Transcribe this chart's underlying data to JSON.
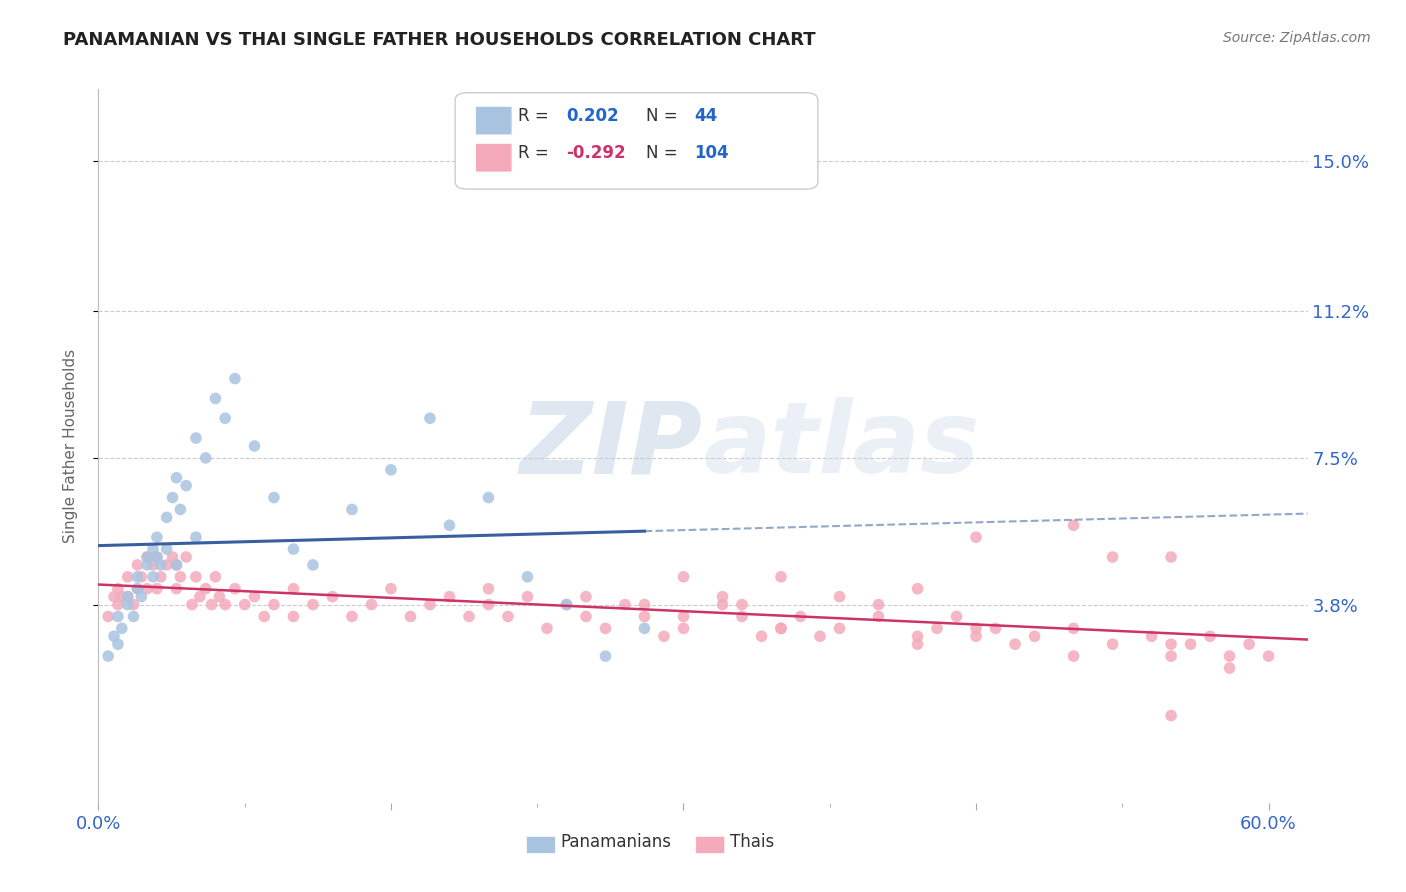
{
  "title": "PANAMANIAN VS THAI SINGLE FATHER HOUSEHOLDS CORRELATION CHART",
  "source": "Source: ZipAtlas.com",
  "ylabel": "Single Father Households",
  "ytick_labels": [
    "15.0%",
    "11.2%",
    "7.5%",
    "3.8%"
  ],
  "ytick_values": [
    0.15,
    0.112,
    0.075,
    0.038
  ],
  "xlim": [
    0.0,
    0.62
  ],
  "ylim": [
    -0.012,
    0.168
  ],
  "pan_color": "#A8C4E0",
  "thai_color": "#F4AABB",
  "pan_line_color": "#3A5FA0",
  "thai_line_color": "#CC3366",
  "pan_legend_color": "#A8C4E0",
  "thai_legend_color": "#F4AABB",
  "r1_color": "#2266CC",
  "n1_color": "#2266CC",
  "r2_color": "#CC3366",
  "n2_color": "#2266CC",
  "watermark_color": "#CCDDEE",
  "background_color": "#ffffff",
  "grid_color": "#cccccc",
  "pan_x": [
    0.005,
    0.008,
    0.01,
    0.01,
    0.012,
    0.015,
    0.015,
    0.018,
    0.02,
    0.02,
    0.022,
    0.025,
    0.025,
    0.028,
    0.028,
    0.03,
    0.03,
    0.032,
    0.035,
    0.035,
    0.038,
    0.04,
    0.04,
    0.042,
    0.045,
    0.05,
    0.05,
    0.055,
    0.06,
    0.065,
    0.07,
    0.08,
    0.09,
    0.1,
    0.11,
    0.13,
    0.15,
    0.17,
    0.18,
    0.2,
    0.22,
    0.24,
    0.26,
    0.28
  ],
  "pan_y": [
    0.025,
    0.03,
    0.028,
    0.035,
    0.032,
    0.04,
    0.038,
    0.035,
    0.045,
    0.042,
    0.04,
    0.048,
    0.05,
    0.045,
    0.052,
    0.055,
    0.05,
    0.048,
    0.06,
    0.052,
    0.065,
    0.07,
    0.048,
    0.062,
    0.068,
    0.08,
    0.055,
    0.075,
    0.09,
    0.085,
    0.095,
    0.078,
    0.065,
    0.052,
    0.048,
    0.062,
    0.072,
    0.085,
    0.058,
    0.065,
    0.045,
    0.038,
    0.025,
    0.032
  ],
  "thai_x": [
    0.005,
    0.008,
    0.01,
    0.01,
    0.012,
    0.015,
    0.015,
    0.018,
    0.02,
    0.02,
    0.022,
    0.025,
    0.025,
    0.028,
    0.03,
    0.03,
    0.032,
    0.035,
    0.038,
    0.04,
    0.04,
    0.042,
    0.045,
    0.048,
    0.05,
    0.052,
    0.055,
    0.058,
    0.06,
    0.062,
    0.065,
    0.07,
    0.075,
    0.08,
    0.085,
    0.09,
    0.1,
    0.1,
    0.11,
    0.12,
    0.13,
    0.14,
    0.15,
    0.16,
    0.17,
    0.18,
    0.19,
    0.2,
    0.21,
    0.22,
    0.23,
    0.24,
    0.25,
    0.26,
    0.27,
    0.28,
    0.29,
    0.3,
    0.32,
    0.33,
    0.34,
    0.35,
    0.36,
    0.37,
    0.38,
    0.4,
    0.42,
    0.43,
    0.44,
    0.45,
    0.46,
    0.47,
    0.48,
    0.5,
    0.52,
    0.54,
    0.55,
    0.56,
    0.57,
    0.58,
    0.59,
    0.6,
    0.45,
    0.5,
    0.52,
    0.55,
    0.3,
    0.32,
    0.35,
    0.38,
    0.4,
    0.42,
    0.2,
    0.25,
    0.28,
    0.3,
    0.33,
    0.35,
    0.45,
    0.55,
    0.5,
    0.58,
    0.55,
    0.42
  ],
  "thai_y": [
    0.035,
    0.04,
    0.038,
    0.042,
    0.04,
    0.045,
    0.04,
    0.038,
    0.048,
    0.042,
    0.045,
    0.05,
    0.042,
    0.048,
    0.05,
    0.042,
    0.045,
    0.048,
    0.05,
    0.048,
    0.042,
    0.045,
    0.05,
    0.038,
    0.045,
    0.04,
    0.042,
    0.038,
    0.045,
    0.04,
    0.038,
    0.042,
    0.038,
    0.04,
    0.035,
    0.038,
    0.042,
    0.035,
    0.038,
    0.04,
    0.035,
    0.038,
    0.042,
    0.035,
    0.038,
    0.04,
    0.035,
    0.038,
    0.035,
    0.04,
    0.032,
    0.038,
    0.035,
    0.032,
    0.038,
    0.035,
    0.03,
    0.032,
    0.038,
    0.035,
    0.03,
    0.032,
    0.035,
    0.03,
    0.032,
    0.035,
    0.03,
    0.032,
    0.035,
    0.03,
    0.032,
    0.028,
    0.03,
    0.032,
    0.028,
    0.03,
    0.025,
    0.028,
    0.03,
    0.025,
    0.028,
    0.025,
    0.055,
    0.058,
    0.05,
    0.05,
    0.045,
    0.04,
    0.045,
    0.04,
    0.038,
    0.042,
    0.042,
    0.04,
    0.038,
    0.035,
    0.038,
    0.032,
    0.032,
    0.028,
    0.025,
    0.022,
    0.01,
    0.028
  ]
}
